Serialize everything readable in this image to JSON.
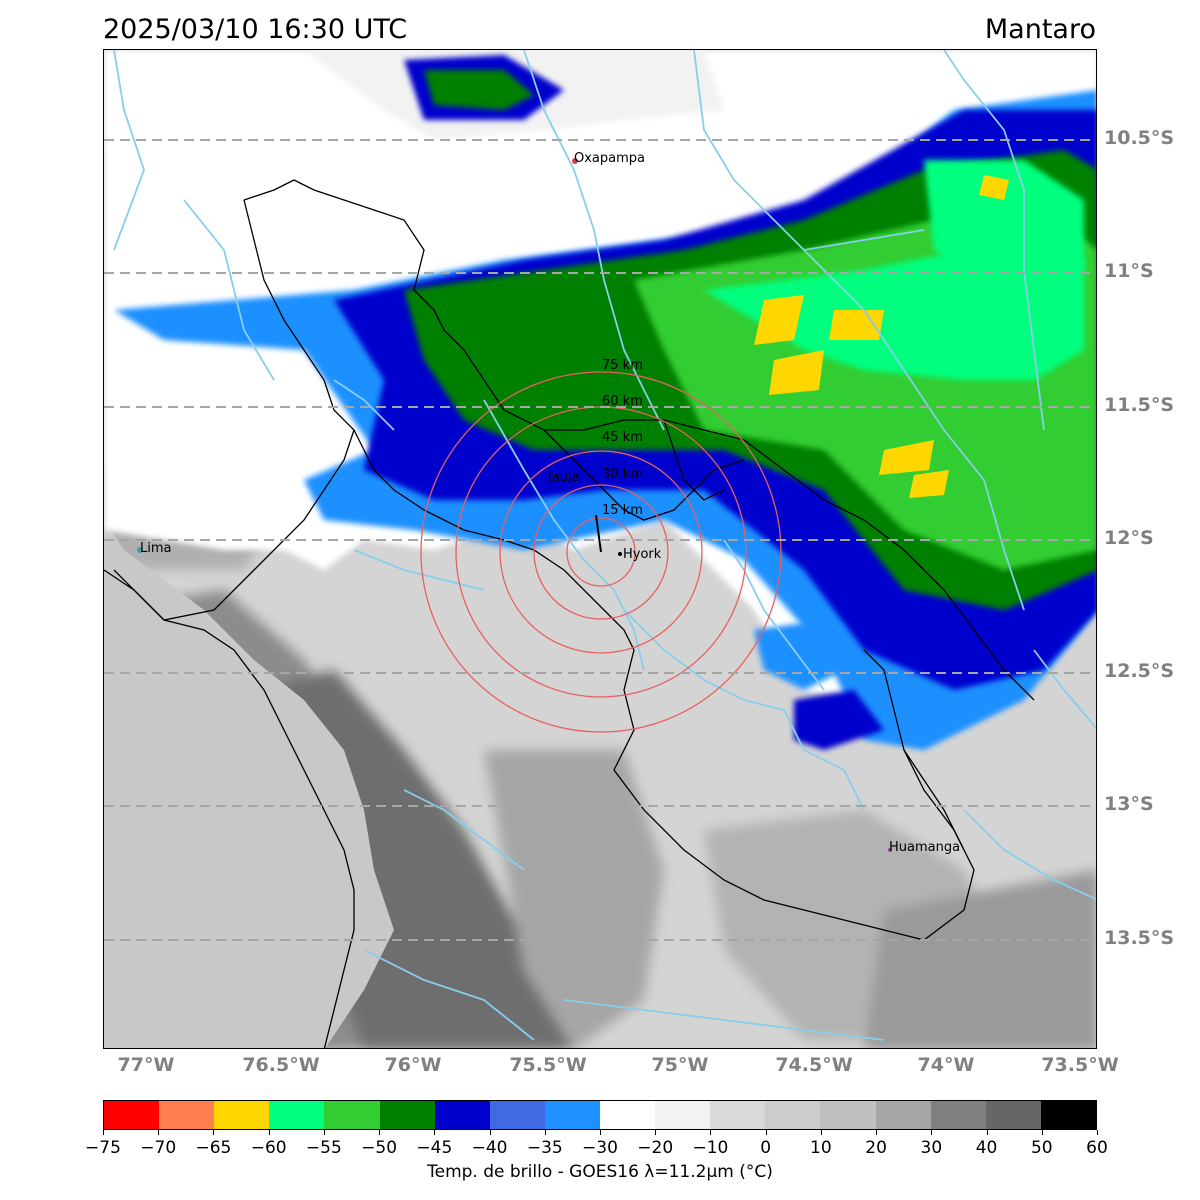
{
  "header": {
    "datetime": "2025/03/10 16:30 UTC",
    "region": "Mantaro"
  },
  "map": {
    "lat_labels": [
      "10.5°S",
      "11°S",
      "11.5°S",
      "12°S",
      "12.5°S",
      "13°S",
      "13.5°S"
    ],
    "lon_labels": [
      "77°W",
      "76.5°W",
      "76°W",
      "75.5°W",
      "75°W",
      "74.5°W",
      "74°W",
      "73.5°W"
    ],
    "cities": [
      {
        "name": "Oxapampa",
        "marker_color": "#d94040"
      },
      {
        "name": "Jauja",
        "marker_color": "#000000"
      },
      {
        "name": "Hyork",
        "marker_color": "#000000"
      },
      {
        "name": "Lima",
        "marker_color": "#40a0a0"
      },
      {
        "name": "Huamanga",
        "marker_color": "#a040a0"
      }
    ],
    "range_rings": [
      "15 km",
      "30 km",
      "45 km",
      "60 km",
      "75 km"
    ],
    "ring_color": "#e86060",
    "river_color": "#87ceeb",
    "border_color": "#000000"
  },
  "colorbar": {
    "label": "Temp. de brillo - GOES16 λ=11.2μm (°C)",
    "ticks": [
      "−75",
      "−70",
      "−65",
      "−60",
      "−55",
      "−50",
      "−45",
      "−40",
      "−35",
      "−30",
      "−20",
      "−10",
      "0",
      "10",
      "20",
      "30",
      "40",
      "50",
      "60"
    ],
    "colors": [
      "#ff0000",
      "#ff7f50",
      "#ffd700",
      "#00ff7f",
      "#32cd32",
      "#008000",
      "#0000cd",
      "#4169e1",
      "#1e90ff",
      "#ffffff",
      "#f2f2f2",
      "#d9d9d9",
      "#cccccc",
      "#bfbfbf",
      "#a6a6a6",
      "#808080",
      "#666666",
      "#000000"
    ]
  }
}
